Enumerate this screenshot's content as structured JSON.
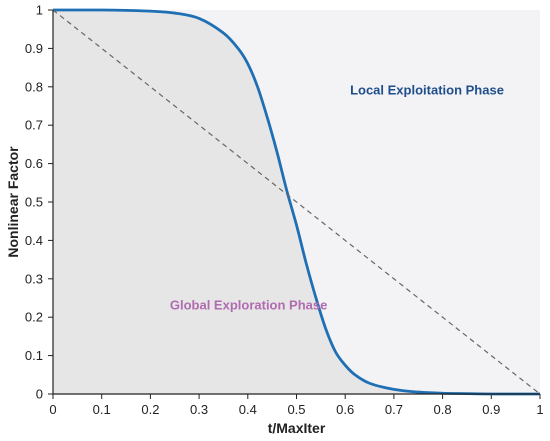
{
  "chart_data": {
    "type": "line",
    "title": "",
    "xlabel": "t/MaxIter",
    "ylabel": "Nonlinear Factor",
    "xlim": [
      0,
      1
    ],
    "ylim": [
      0,
      1
    ],
    "x_ticks": [
      "0",
      "0.1",
      "0.2",
      "0.3",
      "0.4",
      "0.5",
      "0.6",
      "0.7",
      "0.8",
      "0.9",
      "1"
    ],
    "y_ticks": [
      "0",
      "0.1",
      "0.2",
      "0.3",
      "0.4",
      "0.5",
      "0.6",
      "0.7",
      "0.8",
      "0.9",
      "1"
    ],
    "grid": false,
    "series": [
      {
        "style": "solid",
        "color": "#1f6fb5",
        "x": [
          0,
          0.05,
          0.1,
          0.15,
          0.2,
          0.25,
          0.3,
          0.35,
          0.38,
          0.4,
          0.42,
          0.44,
          0.46,
          0.48,
          0.5,
          0.52,
          0.54,
          0.56,
          0.58,
          0.6,
          0.62,
          0.65,
          0.7,
          0.75,
          0.8,
          0.85,
          0.9,
          0.95,
          1
        ],
        "y": [
          1,
          1,
          1,
          0.999,
          0.997,
          0.992,
          0.978,
          0.94,
          0.9,
          0.86,
          0.8,
          0.72,
          0.63,
          0.53,
          0.44,
          0.34,
          0.25,
          0.17,
          0.11,
          0.075,
          0.05,
          0.028,
          0.012,
          0.005,
          0.002,
          0.001,
          0,
          0,
          0
        ]
      },
      {
        "style": "dashed",
        "color": "#666666",
        "x": [
          0,
          1
        ],
        "y": [
          1,
          0
        ]
      }
    ],
    "annotations": [
      {
        "text": "Local Exploitation Phase",
        "x": 0.61,
        "y": 0.78,
        "color": "#1f4e8c"
      },
      {
        "text": "Global Exploration Phase",
        "x": 0.24,
        "y": 0.22,
        "color": "#b06cb0"
      }
    ],
    "colors": {
      "shaded_region": "#e6e6e6",
      "background_region": "#f3f3f5",
      "axis": "#222222"
    }
  }
}
